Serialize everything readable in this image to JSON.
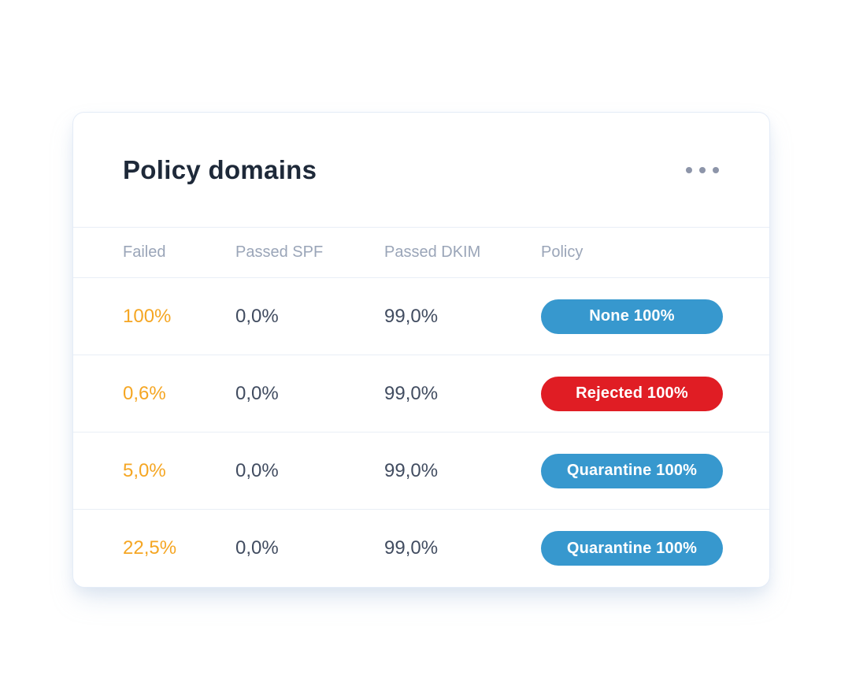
{
  "card": {
    "title": "Policy domains",
    "menu_icon": "ellipsis-horizontal-icon"
  },
  "colors": {
    "failed_accent": "#F5A623",
    "badge_blue": "#3798CE",
    "badge_red": "#E01D24",
    "value_text": "#414C60",
    "header_text": "#9AA5B8",
    "title_text": "#1E2939"
  },
  "table": {
    "columns": [
      "Failed",
      "Passed SPF",
      "Passed DKIM",
      "Policy"
    ],
    "rows": [
      {
        "failed": "100%",
        "passed_spf": "0,0%",
        "passed_dkim": "99,0%",
        "policy": {
          "label": "None 100%",
          "color": "#3798CE"
        }
      },
      {
        "failed": "0,6%",
        "passed_spf": "0,0%",
        "passed_dkim": "99,0%",
        "policy": {
          "label": "Rejected 100%",
          "color": "#E01D24"
        }
      },
      {
        "failed": "5,0%",
        "passed_spf": "0,0%",
        "passed_dkim": "99,0%",
        "policy": {
          "label": "Quarantine 100%",
          "color": "#3798CE"
        }
      },
      {
        "failed": "22,5%",
        "passed_spf": "0,0%",
        "passed_dkim": "99,0%",
        "policy": {
          "label": "Quarantine 100%",
          "color": "#3798CE"
        }
      }
    ]
  }
}
